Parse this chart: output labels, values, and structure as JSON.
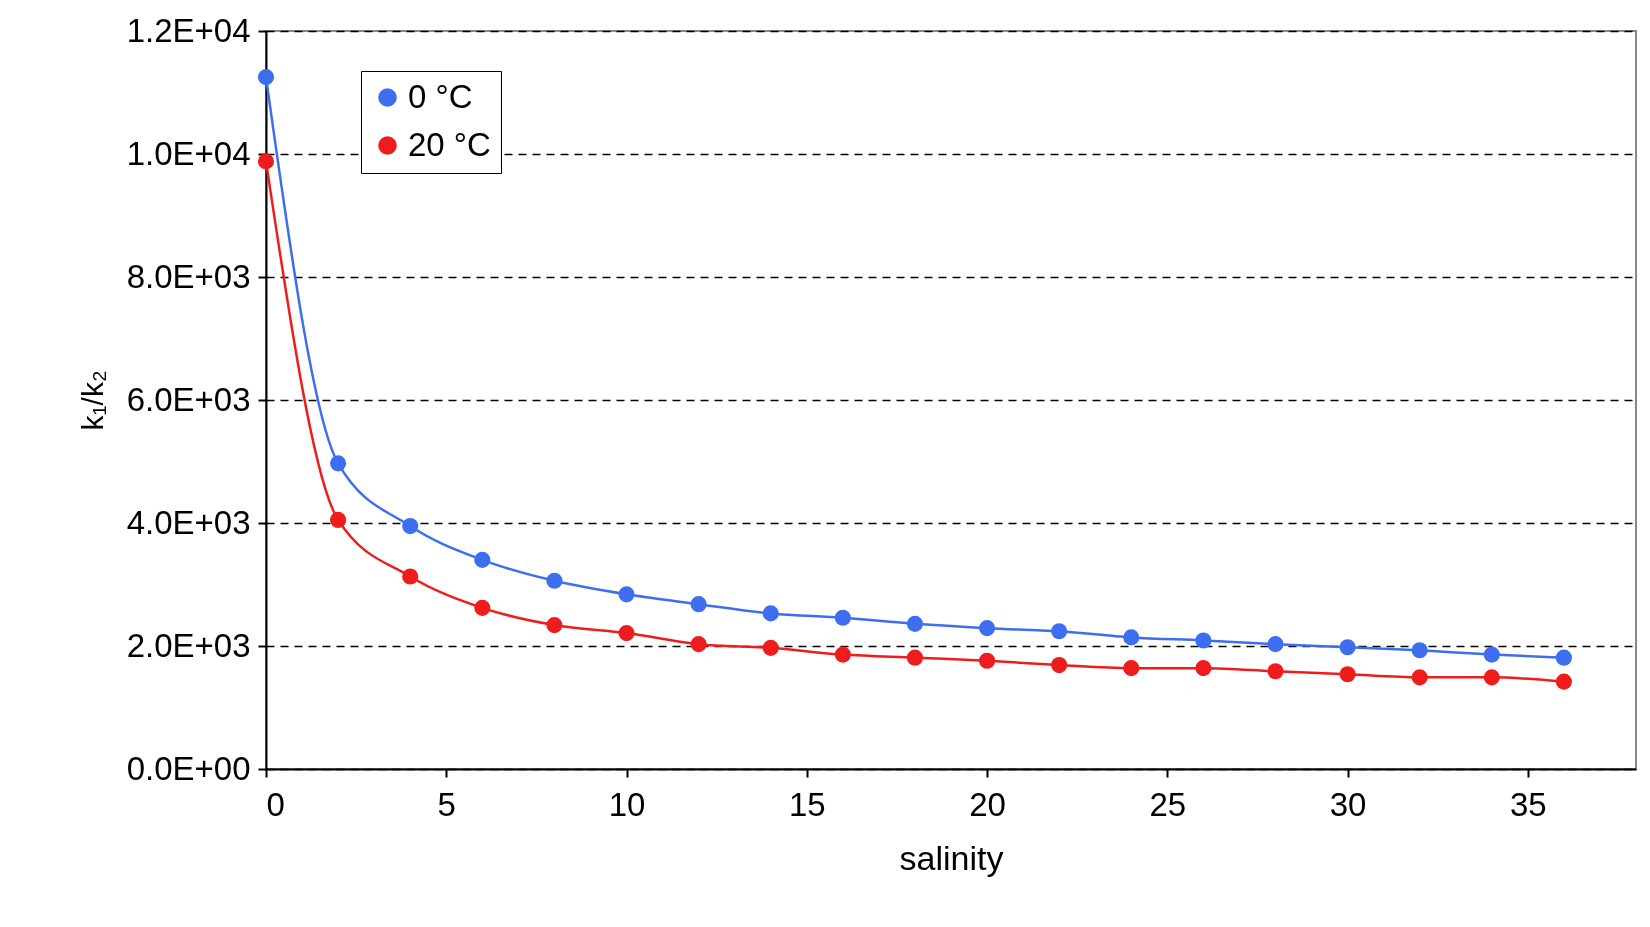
{
  "chart_data": {
    "type": "line",
    "xlabel": "salinity",
    "ylabel": "k₁/k₂",
    "x": [
      0,
      2,
      4,
      6,
      8,
      10,
      12,
      14,
      16,
      18,
      20,
      22,
      24,
      26,
      28,
      30,
      32,
      34,
      36
    ],
    "series": [
      {
        "name": "0 °C",
        "color": "#3d6ef0",
        "values": [
          11250,
          4970,
          3950,
          3400,
          3060,
          2840,
          2680,
          2530,
          2460,
          2360,
          2290,
          2240,
          2140,
          2090,
          2030,
          1980,
          1930,
          1860,
          1810
        ]
      },
      {
        "name": "20 °C",
        "color": "#ee1c1c",
        "values": [
          9880,
          4050,
          3130,
          2620,
          2340,
          2210,
          2030,
          1970,
          1860,
          1810,
          1760,
          1690,
          1640,
          1640,
          1590,
          1540,
          1490,
          1490,
          1420
        ]
      }
    ],
    "xlim": [
      0,
      38
    ],
    "xticks": [
      0,
      5,
      10,
      15,
      20,
      25,
      30,
      35
    ],
    "ylim": [
      0,
      12000
    ],
    "yticks": [
      {
        "value": 0,
        "label": "0.0E+00"
      },
      {
        "value": 2000,
        "label": "2.0E+03"
      },
      {
        "value": 4000,
        "label": "4.0E+03"
      },
      {
        "value": 6000,
        "label": "6.0E+03"
      },
      {
        "value": 8000,
        "label": "8.0E+03"
      },
      {
        "value": 10000,
        "label": "1.0E+04"
      },
      {
        "value": 12000,
        "label": "1.2E+04"
      }
    ],
    "grid": "y",
    "legend": "top left",
    "marker": "circle",
    "line_style": "solid"
  }
}
